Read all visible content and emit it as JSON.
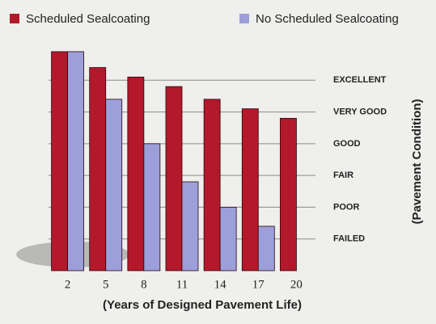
{
  "chart_data": {
    "type": "bar",
    "categories": [
      "2",
      "5",
      "8",
      "11",
      "14",
      "17",
      "20"
    ],
    "series": [
      {
        "name": "Scheduled Sealcoating",
        "color": "#b3192b",
        "values": [
          5.9,
          5.4,
          5.1,
          4.8,
          4.4,
          4.1,
          3.8
        ]
      },
      {
        "name": "No Scheduled Sealcoating",
        "color": "#9c9fd9",
        "values": [
          5.9,
          4.4,
          3.0,
          1.8,
          1.0,
          0.4,
          null
        ]
      }
    ],
    "xlabel": "(Years of Designed Pavement Life)",
    "ylabel": "(Pavement Condition)",
    "ylim": [
      -1,
      6
    ],
    "yticks": [
      {
        "value": 0,
        "label": "FAILED"
      },
      {
        "value": 1,
        "label": "POOR"
      },
      {
        "value": 2,
        "label": "FAIR"
      },
      {
        "value": 3,
        "label": "GOOD"
      },
      {
        "value": 4,
        "label": "VERY GOOD"
      },
      {
        "value": 5,
        "label": "EXCELLENT"
      }
    ],
    "grid": true
  }
}
